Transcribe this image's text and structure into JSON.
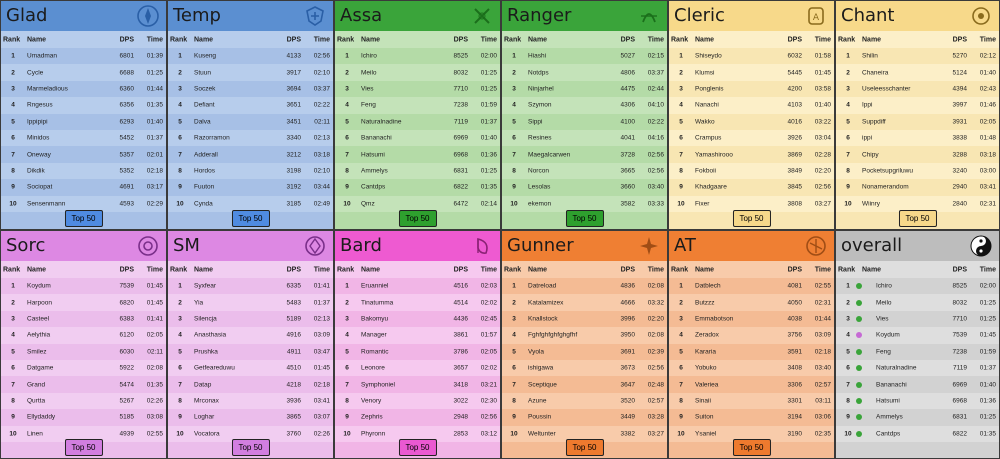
{
  "headers": {
    "rank": "Rank",
    "name": "Name",
    "dps": "DPS",
    "time": "Time"
  },
  "panels": [
    {
      "title": "Glad",
      "emblem": "glad-emblem-icon",
      "color": "#5b8fd1",
      "rowA": "#b7cdec",
      "rowB": "#a7c0e6",
      "button": "Top 50",
      "btnColor": "#4f8be1",
      "rows": [
        [
          "1",
          "Umadman",
          "6801",
          "01:39"
        ],
        [
          "2",
          "Cycle",
          "6688",
          "01:25"
        ],
        [
          "3",
          "Marmeladious",
          "6360",
          "01:44"
        ],
        [
          "4",
          "Rngesus",
          "6356",
          "01:35"
        ],
        [
          "5",
          "Ippipipi",
          "6293",
          "01:40"
        ],
        [
          "6",
          "Minidos",
          "5452",
          "01:37"
        ],
        [
          "7",
          "Oneway",
          "5357",
          "02:01"
        ],
        [
          "8",
          "Dikdik",
          "5352",
          "02:18"
        ],
        [
          "9",
          "Sociopat",
          "4691",
          "03:17"
        ],
        [
          "10",
          "Sensenmann",
          "4593",
          "02:29"
        ]
      ]
    },
    {
      "title": "Temp",
      "emblem": "temp-emblem-icon",
      "color": "#5b8fd1",
      "rowA": "#b7cdec",
      "rowB": "#a7c0e6",
      "button": "Top 50",
      "btnColor": "#4f8be1",
      "rows": [
        [
          "1",
          "Kuseng",
          "4133",
          "02:56"
        ],
        [
          "2",
          "Stuun",
          "3917",
          "02:10"
        ],
        [
          "3",
          "Soczek",
          "3694",
          "03:37"
        ],
        [
          "4",
          "Defiant",
          "3651",
          "02:22"
        ],
        [
          "5",
          "Dalva",
          "3451",
          "02:11"
        ],
        [
          "6",
          "Razorramon",
          "3340",
          "02:13"
        ],
        [
          "7",
          "Adderall",
          "3212",
          "03:18"
        ],
        [
          "8",
          "Hordos",
          "3198",
          "02:10"
        ],
        [
          "9",
          "Fuuton",
          "3192",
          "03:44"
        ],
        [
          "10",
          "Cynda",
          "3185",
          "02:49"
        ]
      ]
    },
    {
      "title": "Assa",
      "emblem": "assa-emblem-icon",
      "color": "#3aa43a",
      "rowA": "#c4e3b9",
      "rowB": "#b4dba7",
      "button": "Top 50",
      "btnColor": "#2ea02e",
      "rows": [
        [
          "1",
          "Ichiro",
          "8525",
          "02:00"
        ],
        [
          "2",
          "Meilo",
          "8032",
          "01:25"
        ],
        [
          "3",
          "Vies",
          "7710",
          "01:25"
        ],
        [
          "4",
          "Feng",
          "7238",
          "01:59"
        ],
        [
          "5",
          "Naturalnadine",
          "7119",
          "01:37"
        ],
        [
          "6",
          "Bananachi",
          "6969",
          "01:40"
        ],
        [
          "7",
          "Hatsumi",
          "6968",
          "01:36"
        ],
        [
          "8",
          "Ammelys",
          "6831",
          "01:25"
        ],
        [
          "9",
          "Cantdps",
          "6822",
          "01:35"
        ],
        [
          "10",
          "Qmz",
          "6472",
          "02:14"
        ]
      ]
    },
    {
      "title": "Ranger",
      "emblem": "ranger-emblem-icon",
      "color": "#3aa43a",
      "rowA": "#c4e3b9",
      "rowB": "#b4dba7",
      "button": "Top 50",
      "btnColor": "#2ea02e",
      "rows": [
        [
          "1",
          "Hiashi",
          "5027",
          "02:15"
        ],
        [
          "2",
          "Notdps",
          "4806",
          "03:37"
        ],
        [
          "3",
          "Ninjarhel",
          "4475",
          "02:44"
        ],
        [
          "4",
          "Szymon",
          "4306",
          "04:10"
        ],
        [
          "5",
          "Sippi",
          "4100",
          "02:22"
        ],
        [
          "6",
          "Resines",
          "4041",
          "04:16"
        ],
        [
          "7",
          "Maegalcarwen",
          "3728",
          "02:56"
        ],
        [
          "8",
          "Norcon",
          "3665",
          "02:56"
        ],
        [
          "9",
          "Lesolas",
          "3660",
          "03:40"
        ],
        [
          "10",
          "ekemon",
          "3582",
          "03:33"
        ]
      ]
    },
    {
      "title": "Cleric",
      "emblem": "cleric-emblem-icon",
      "color": "#f7d98a",
      "rowA": "#fcefc8",
      "rowB": "#f8e6b3",
      "button": "Top 50",
      "btnColor": "#f6d88a",
      "rows": [
        [
          "1",
          "Shiseydo",
          "6032",
          "01:58"
        ],
        [
          "2",
          "Klumsi",
          "5445",
          "01:45"
        ],
        [
          "3",
          "Ponglenis",
          "4200",
          "03:58"
        ],
        [
          "4",
          "Nanachi",
          "4103",
          "01:40"
        ],
        [
          "5",
          "Wakko",
          "4016",
          "03:22"
        ],
        [
          "6",
          "Crampus",
          "3926",
          "03:04"
        ],
        [
          "7",
          "Yamashirooo",
          "3869",
          "02:28"
        ],
        [
          "8",
          "Fokboii",
          "3849",
          "02:20"
        ],
        [
          "9",
          "Khadgaare",
          "3845",
          "02:56"
        ],
        [
          "10",
          "Fixer",
          "3808",
          "03:27"
        ]
      ]
    },
    {
      "title": "Chant",
      "emblem": "chant-emblem-icon",
      "color": "#f7d98a",
      "rowA": "#fcefc8",
      "rowB": "#f8e6b3",
      "button": "Top 50",
      "btnColor": "#f6d88a",
      "rows": [
        [
          "1",
          "Shilin",
          "5270",
          "02:12"
        ],
        [
          "2",
          "Chaneira",
          "5124",
          "01:40"
        ],
        [
          "3",
          "Useleesschanter",
          "4394",
          "02:43"
        ],
        [
          "4",
          "Ippi",
          "3997",
          "01:46"
        ],
        [
          "5",
          "Suppdiff",
          "3931",
          "02:05"
        ],
        [
          "6",
          "ippi",
          "3838",
          "01:48"
        ],
        [
          "7",
          "Chipy",
          "3288",
          "03:18"
        ],
        [
          "8",
          "Pocketsupgriluwu",
          "3240",
          "03:00"
        ],
        [
          "9",
          "Nonamerandom",
          "2940",
          "03:41"
        ],
        [
          "10",
          "Wiinry",
          "2840",
          "02:31"
        ]
      ]
    },
    {
      "title": "Sorc",
      "emblem": "sorc-emblem-icon",
      "color": "#dd88e3",
      "rowA": "#f1cdf1",
      "rowB": "#ebbdeb",
      "button": "Top 50",
      "btnColor": "#d27ee0",
      "rows": [
        [
          "1",
          "Koydum",
          "7539",
          "01:45"
        ],
        [
          "2",
          "Harpoon",
          "6820",
          "01:45"
        ],
        [
          "3",
          "Casteel",
          "6383",
          "01:41"
        ],
        [
          "4",
          "Aelythia",
          "6120",
          "02:05"
        ],
        [
          "5",
          "Smilez",
          "6030",
          "02:11"
        ],
        [
          "6",
          "Datgame",
          "5922",
          "02:08"
        ],
        [
          "7",
          "Grand",
          "5474",
          "01:35"
        ],
        [
          "8",
          "Qurtta",
          "5267",
          "02:26"
        ],
        [
          "9",
          "Ellydaddy",
          "5185",
          "03:08"
        ],
        [
          "10",
          "Linen",
          "4939",
          "02:55"
        ]
      ]
    },
    {
      "title": "SM",
      "emblem": "sm-emblem-icon",
      "color": "#dd88e3",
      "rowA": "#f1cdf1",
      "rowB": "#ebbdeb",
      "button": "Top 50",
      "btnColor": "#d27ee0",
      "rows": [
        [
          "1",
          "Syxfear",
          "6335",
          "01:41"
        ],
        [
          "2",
          "Yia",
          "5483",
          "01:37"
        ],
        [
          "3",
          "Silencja",
          "5189",
          "02:13"
        ],
        [
          "4",
          "Anasthasia",
          "4916",
          "03:09"
        ],
        [
          "5",
          "Prushka",
          "4911",
          "03:47"
        ],
        [
          "6",
          "Getfeareduwu",
          "4510",
          "01:45"
        ],
        [
          "7",
          "Datap",
          "4218",
          "02:18"
        ],
        [
          "8",
          "Mrconax",
          "3936",
          "03:41"
        ],
        [
          "9",
          "Loghar",
          "3865",
          "03:07"
        ],
        [
          "10",
          "Vocatora",
          "3760",
          "02:26"
        ]
      ]
    },
    {
      "title": "Bard",
      "emblem": "bard-emblem-icon",
      "color": "#ee5ad1",
      "rowA": "#f6c9ef",
      "rowB": "#f1b5e6",
      "button": "Top 50",
      "btnColor": "#ea59d1",
      "rows": [
        [
          "1",
          "Eruanniel",
          "4516",
          "02:03"
        ],
        [
          "2",
          "Tinatumma",
          "4514",
          "02:02"
        ],
        [
          "3",
          "Bakomyu",
          "4436",
          "02:45"
        ],
        [
          "4",
          "Manager",
          "3861",
          "01:57"
        ],
        [
          "5",
          "Romantic",
          "3786",
          "02:05"
        ],
        [
          "6",
          "Leonore",
          "3657",
          "02:02"
        ],
        [
          "7",
          "Symphoniel",
          "3418",
          "03:21"
        ],
        [
          "8",
          "Venory",
          "3022",
          "02:30"
        ],
        [
          "9",
          "Zephris",
          "2948",
          "02:56"
        ],
        [
          "10",
          "Phyronn",
          "2853",
          "03:12"
        ]
      ]
    },
    {
      "title": "Gunner",
      "emblem": "gunner-emblem-icon",
      "color": "#ef7f33",
      "rowA": "#f8cbaa",
      "rowB": "#f4bb94",
      "button": "Top 50",
      "btnColor": "#ee7a2e",
      "rows": [
        [
          "1",
          "Datreload",
          "4836",
          "02:08"
        ],
        [
          "2",
          "Katalamizex",
          "4666",
          "03:32"
        ],
        [
          "3",
          "Knallstock",
          "3996",
          "02:20"
        ],
        [
          "4",
          "Fghfghfghfghgfhf",
          "3950",
          "02:08"
        ],
        [
          "5",
          "Vyola",
          "3691",
          "02:39"
        ],
        [
          "6",
          "ishigawa",
          "3673",
          "02:56"
        ],
        [
          "7",
          "Sceptique",
          "3647",
          "02:48"
        ],
        [
          "8",
          "Azune",
          "3520",
          "02:57"
        ],
        [
          "9",
          "Poussin",
          "3449",
          "03:28"
        ],
        [
          "10",
          "Weltunter",
          "3382",
          "03:27"
        ]
      ]
    },
    {
      "title": "AT",
      "emblem": "at-emblem-icon",
      "color": "#ef7f33",
      "rowA": "#f8cbaa",
      "rowB": "#f4bb94",
      "button": "Top 50",
      "btnColor": "#ee7a2e",
      "rows": [
        [
          "1",
          "Datblech",
          "4081",
          "02:55"
        ],
        [
          "2",
          "Butzzz",
          "4050",
          "02:31"
        ],
        [
          "3",
          "Emmabotson",
          "4038",
          "01:44"
        ],
        [
          "4",
          "Zeradox",
          "3756",
          "03:09"
        ],
        [
          "5",
          "Kararia",
          "3591",
          "02:18"
        ],
        [
          "6",
          "Yobuko",
          "3408",
          "03:40"
        ],
        [
          "7",
          "Valeriea",
          "3306",
          "02:57"
        ],
        [
          "8",
          "Sinaii",
          "3301",
          "03:11"
        ],
        [
          "9",
          "Suiton",
          "3194",
          "03:06"
        ],
        [
          "10",
          "Ysaniel",
          "3190",
          "02:35"
        ]
      ]
    },
    {
      "title": "overall",
      "emblem": "yin-yang-icon",
      "color": "#bdbdbd",
      "rowA": "#dedede",
      "rowB": "#d2d2d2",
      "button": "",
      "btnColor": "#bdbdbd",
      "rows": [
        [
          "1",
          "Ichiro",
          "8525",
          "02:00"
        ],
        [
          "2",
          "Meilo",
          "8032",
          "01:25"
        ],
        [
          "3",
          "Vies",
          "7710",
          "01:25"
        ],
        [
          "4",
          "Koydum",
          "7539",
          "01:45"
        ],
        [
          "5",
          "Feng",
          "7238",
          "01:59"
        ],
        [
          "6",
          "Naturalnadine",
          "7119",
          "01:37"
        ],
        [
          "7",
          "Bananachi",
          "6969",
          "01:40"
        ],
        [
          "8",
          "Hatsumi",
          "6968",
          "01:36"
        ],
        [
          "9",
          "Ammelys",
          "6831",
          "01:25"
        ],
        [
          "10",
          "Cantdps",
          "6822",
          "01:35"
        ]
      ],
      "classIcons": [
        "#3aa43a",
        "#3aa43a",
        "#3aa43a",
        "#c66ad4",
        "#3aa43a",
        "#3aa43a",
        "#3aa43a",
        "#3aa43a",
        "#3aa43a",
        "#3aa43a"
      ]
    }
  ]
}
